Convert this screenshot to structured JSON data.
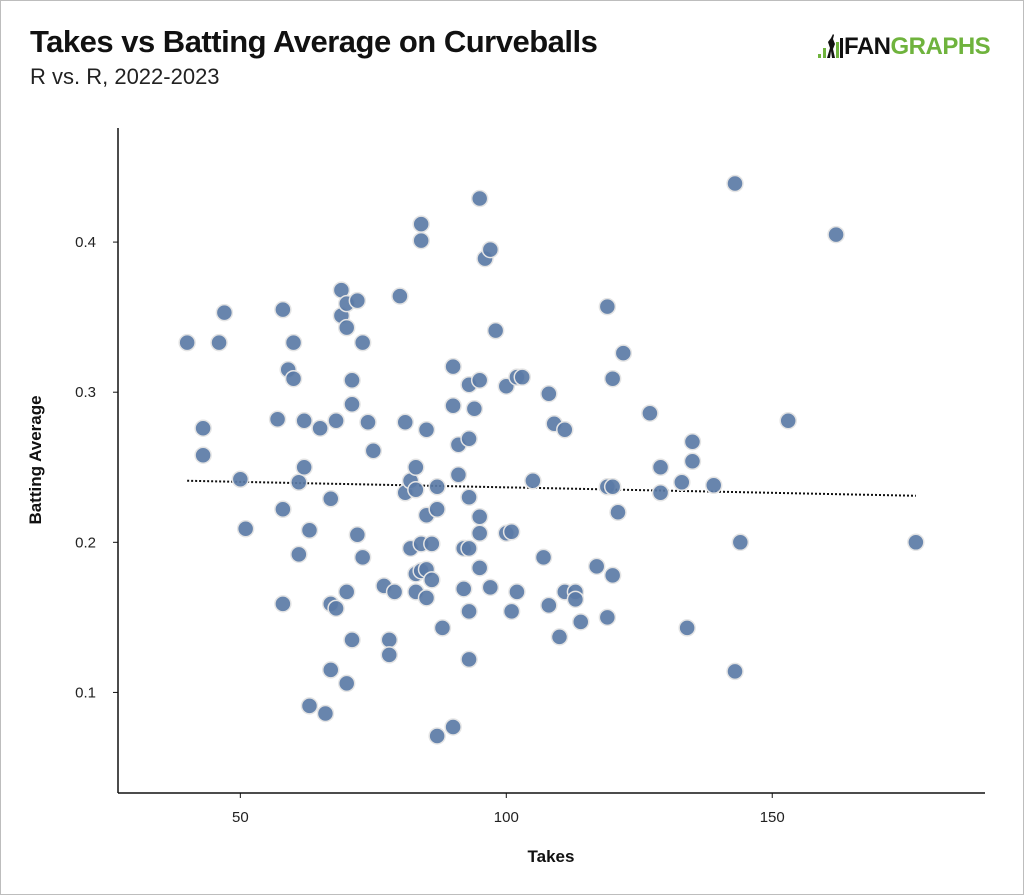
{
  "header": {
    "title": "Takes vs Batting Average on Curveballs",
    "subtitle": "R vs. R, 2022-2023"
  },
  "logo": {
    "text_dark": "FAN",
    "text_green": "GRAPHS",
    "brand_color": "#6fb33d"
  },
  "chart_data": {
    "type": "scatter",
    "xlabel": "Takes",
    "ylabel": "Batting Average",
    "xlim": [
      27,
      190
    ],
    "ylim": [
      0.033,
      0.476
    ],
    "xticks": [
      50,
      100,
      150
    ],
    "yticks": [
      0.1,
      0.2,
      0.3,
      0.4
    ],
    "xtick_labels": [
      "50",
      "100",
      "150"
    ],
    "ytick_labels": [
      "0.1",
      "0.2",
      "0.3",
      "0.4"
    ],
    "grid": false,
    "point_color": "#5b7ba6",
    "trendline": {
      "style": "dotted",
      "x": [
        40,
        177
      ],
      "y": [
        0.241,
        0.231
      ]
    },
    "points": [
      [
        40,
        0.333
      ],
      [
        43,
        0.276
      ],
      [
        43,
        0.258
      ],
      [
        46,
        0.333
      ],
      [
        47,
        0.353
      ],
      [
        50,
        0.242
      ],
      [
        51,
        0.209
      ],
      [
        57,
        0.282
      ],
      [
        58,
        0.355
      ],
      [
        58,
        0.222
      ],
      [
        58,
        0.159
      ],
      [
        59,
        0.315
      ],
      [
        60,
        0.309
      ],
      [
        60,
        0.333
      ],
      [
        61,
        0.192
      ],
      [
        61,
        0.24
      ],
      [
        62,
        0.25
      ],
      [
        62,
        0.281
      ],
      [
        63,
        0.208
      ],
      [
        63,
        0.091
      ],
      [
        65,
        0.276
      ],
      [
        66,
        0.086
      ],
      [
        67,
        0.229
      ],
      [
        67,
        0.115
      ],
      [
        67,
        0.159
      ],
      [
        68,
        0.281
      ],
      [
        68,
        0.156
      ],
      [
        69,
        0.368
      ],
      [
        69,
        0.351
      ],
      [
        70,
        0.359
      ],
      [
        70,
        0.343
      ],
      [
        70,
        0.167
      ],
      [
        70,
        0.106
      ],
      [
        71,
        0.308
      ],
      [
        71,
        0.292
      ],
      [
        71,
        0.135
      ],
      [
        72,
        0.361
      ],
      [
        72,
        0.205
      ],
      [
        73,
        0.19
      ],
      [
        73,
        0.333
      ],
      [
        74,
        0.28
      ],
      [
        75,
        0.261
      ],
      [
        77,
        0.171
      ],
      [
        78,
        0.135
      ],
      [
        78,
        0.125
      ],
      [
        79,
        0.167
      ],
      [
        80,
        0.364
      ],
      [
        81,
        0.28
      ],
      [
        81,
        0.233
      ],
      [
        82,
        0.196
      ],
      [
        82,
        0.241
      ],
      [
        83,
        0.25
      ],
      [
        83,
        0.235
      ],
      [
        83,
        0.179
      ],
      [
        83,
        0.167
      ],
      [
        84,
        0.412
      ],
      [
        84,
        0.401
      ],
      [
        84,
        0.199
      ],
      [
        84,
        0.181
      ],
      [
        85,
        0.275
      ],
      [
        85,
        0.218
      ],
      [
        85,
        0.182
      ],
      [
        85,
        0.163
      ],
      [
        86,
        0.175
      ],
      [
        86,
        0.199
      ],
      [
        87,
        0.071
      ],
      [
        87,
        0.222
      ],
      [
        88,
        0.143
      ],
      [
        87,
        0.237
      ],
      [
        90,
        0.317
      ],
      [
        90,
        0.291
      ],
      [
        90,
        0.077
      ],
      [
        91,
        0.265
      ],
      [
        91,
        0.245
      ],
      [
        92,
        0.196
      ],
      [
        92,
        0.169
      ],
      [
        93,
        0.196
      ],
      [
        93,
        0.269
      ],
      [
        93,
        0.305
      ],
      [
        93,
        0.23
      ],
      [
        93,
        0.154
      ],
      [
        93,
        0.122
      ],
      [
        94,
        0.289
      ],
      [
        95,
        0.429
      ],
      [
        95,
        0.308
      ],
      [
        95,
        0.206
      ],
      [
        95,
        0.217
      ],
      [
        95,
        0.183
      ],
      [
        96,
        0.389
      ],
      [
        97,
        0.395
      ],
      [
        97,
        0.17
      ],
      [
        98,
        0.341
      ],
      [
        100,
        0.304
      ],
      [
        100,
        0.206
      ],
      [
        101,
        0.207
      ],
      [
        101,
        0.154
      ],
      [
        102,
        0.31
      ],
      [
        102,
        0.167
      ],
      [
        103,
        0.31
      ],
      [
        105,
        0.241
      ],
      [
        107,
        0.19
      ],
      [
        108,
        0.299
      ],
      [
        108,
        0.158
      ],
      [
        109,
        0.279
      ],
      [
        110,
        0.137
      ],
      [
        111,
        0.167
      ],
      [
        111,
        0.275
      ],
      [
        113,
        0.167
      ],
      [
        113,
        0.162
      ],
      [
        114,
        0.147
      ],
      [
        117,
        0.184
      ],
      [
        119,
        0.357
      ],
      [
        119,
        0.237
      ],
      [
        119,
        0.15
      ],
      [
        120,
        0.237
      ],
      [
        120,
        0.309
      ],
      [
        120,
        0.178
      ],
      [
        121,
        0.22
      ],
      [
        122,
        0.326
      ],
      [
        127,
        0.286
      ],
      [
        129,
        0.25
      ],
      [
        129,
        0.233
      ],
      [
        133,
        0.24
      ],
      [
        134,
        0.143
      ],
      [
        135,
        0.267
      ],
      [
        135,
        0.254
      ],
      [
        139,
        0.238
      ],
      [
        143,
        0.439
      ],
      [
        143,
        0.114
      ],
      [
        144,
        0.2
      ],
      [
        153,
        0.281
      ],
      [
        162,
        0.405
      ],
      [
        177,
        0.2
      ]
    ]
  }
}
